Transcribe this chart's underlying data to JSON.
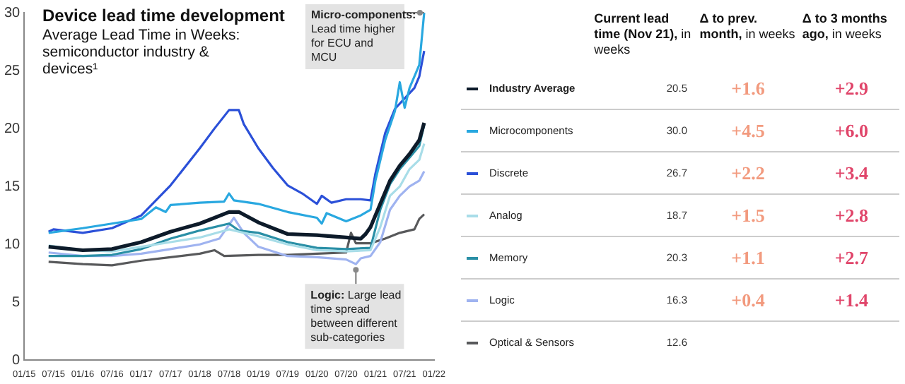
{
  "chart_data": [
    {
      "type": "line",
      "title": "Device lead time development",
      "subtitle": "Average Lead Time in Weeks: semiconductor industry & devices¹",
      "xlim": [
        "2015-01",
        "2022-01"
      ],
      "xticks": [
        {
          "value": "2015-01",
          "label": "01/15"
        },
        {
          "value": "2015-07",
          "label": "07/15"
        },
        {
          "value": "2016-01",
          "label": "01/16"
        },
        {
          "value": "2016-07",
          "label": "07/16"
        },
        {
          "value": "2017-01",
          "label": "01/17"
        },
        {
          "value": "2017-07",
          "label": "07/17"
        },
        {
          "value": "2018-01",
          "label": "01/18"
        },
        {
          "value": "2018-07",
          "label": "07/18"
        },
        {
          "value": "2019-01",
          "label": "01/19"
        },
        {
          "value": "2019-07",
          "label": "07/19"
        },
        {
          "value": "2020-01",
          "label": "01/20"
        },
        {
          "value": "2020-07",
          "label": "07/20"
        },
        {
          "value": "2021-01",
          "label": "01/21"
        },
        {
          "value": "2021-07",
          "label": "07/21"
        },
        {
          "value": "2022-01",
          "label": "01/22"
        }
      ],
      "ylim": [
        0,
        30
      ],
      "yticks": [
        0,
        5,
        10,
        15,
        20,
        25,
        30
      ],
      "grid": false,
      "marker": "none",
      "line_style": "solid",
      "annotations": [
        {
          "text": "Micro-components: Lead time higher for ECU and MCU",
          "x": "2021-11",
          "y": 30
        },
        {
          "text": "Logic: Large lead time spread between different sub-categories",
          "x": "2020-09",
          "y": 8.3
        }
      ],
      "series": [
        {
          "color": "#0d1b2a",
          "x": [
            "2015-06",
            "2016-01",
            "2016-07",
            "2017-01",
            "2017-07",
            "2018-01",
            "2018-07",
            "2018-09",
            "2019-01",
            "2019-07",
            "2020-01",
            "2020-07",
            "2020-10",
            "2020-11",
            "2020-12",
            "2021-02",
            "2021-04",
            "2021-06",
            "2021-08",
            "2021-10",
            "2021-11"
          ],
          "values": [
            9.8,
            9.5,
            9.6,
            10.2,
            11.1,
            11.8,
            12.8,
            12.8,
            11.9,
            10.9,
            10.8,
            10.6,
            10.5,
            10.9,
            11.5,
            13.5,
            15.5,
            16.8,
            17.8,
            19.0,
            20.5
          ]
        },
        {
          "color": "#29a8e0",
          "x": [
            "2015-06",
            "2016-01",
            "2016-07",
            "2017-01",
            "2017-04",
            "2017-06",
            "2017-07",
            "2018-01",
            "2018-06",
            "2018-07",
            "2018-08",
            "2019-01",
            "2019-07",
            "2020-01",
            "2020-02",
            "2020-03",
            "2020-07",
            "2020-10",
            "2020-12",
            "2021-01",
            "2021-03",
            "2021-05",
            "2021-06",
            "2021-07",
            "2021-08",
            "2021-10",
            "2021-11"
          ],
          "values": [
            11.0,
            11.4,
            11.8,
            12.2,
            13.2,
            12.8,
            13.4,
            13.6,
            13.7,
            14.4,
            13.8,
            13.5,
            12.8,
            12.3,
            11.8,
            12.7,
            12.0,
            12.5,
            13.0,
            15.5,
            19.0,
            21.5,
            24.0,
            21.8,
            23.5,
            25.5,
            30.0
          ]
        },
        {
          "color": "#2b50d8",
          "x": [
            "2015-06",
            "2015-07",
            "2016-01",
            "2016-07",
            "2017-01",
            "2017-07",
            "2018-01",
            "2018-04",
            "2018-07",
            "2018-09",
            "2018-10",
            "2019-01",
            "2019-04",
            "2019-07",
            "2019-10",
            "2020-01",
            "2020-02",
            "2020-04",
            "2020-07",
            "2020-10",
            "2020-12",
            "2021-01",
            "2021-03",
            "2021-05",
            "2021-07",
            "2021-09",
            "2021-10",
            "2021-11"
          ],
          "values": [
            11.1,
            11.3,
            11.0,
            11.4,
            12.5,
            15.1,
            18.3,
            20.0,
            21.6,
            21.6,
            20.4,
            18.3,
            16.6,
            15.1,
            14.4,
            13.5,
            14.2,
            13.6,
            13.9,
            13.9,
            13.8,
            16.1,
            19.6,
            21.7,
            22.6,
            23.5,
            24.5,
            26.7
          ]
        },
        {
          "color": "#a8dde8",
          "x": [
            "2015-06",
            "2016-01",
            "2016-07",
            "2017-01",
            "2017-07",
            "2018-01",
            "2018-07",
            "2019-01",
            "2019-07",
            "2020-01",
            "2020-07",
            "2020-12",
            "2021-02",
            "2021-04",
            "2021-06",
            "2021-08",
            "2021-10",
            "2021-11"
          ],
          "values": [
            9.9,
            9.5,
            9.4,
            9.8,
            10.2,
            10.6,
            11.3,
            10.7,
            10.0,
            9.5,
            9.4,
            9.5,
            11.5,
            14.2,
            15.0,
            16.5,
            17.3,
            18.7
          ]
        },
        {
          "color": "#2a8fa6",
          "x": [
            "2015-06",
            "2016-01",
            "2016-07",
            "2017-01",
            "2017-07",
            "2018-01",
            "2018-07",
            "2018-09",
            "2019-01",
            "2019-07",
            "2020-01",
            "2020-07",
            "2020-12",
            "2021-02",
            "2021-04",
            "2021-06",
            "2021-08",
            "2021-10",
            "2021-11"
          ],
          "values": [
            9.0,
            9.0,
            9.1,
            9.6,
            10.5,
            11.2,
            11.8,
            11.2,
            11.0,
            10.2,
            9.7,
            9.6,
            9.7,
            13.0,
            15.2,
            16.5,
            17.5,
            18.5,
            20.3
          ]
        },
        {
          "color": "#9fb3f0",
          "x": [
            "2015-06",
            "2016-01",
            "2016-07",
            "2017-01",
            "2017-07",
            "2018-01",
            "2018-05",
            "2018-08",
            "2018-10",
            "2019-01",
            "2019-07",
            "2020-01",
            "2020-07",
            "2020-09",
            "2020-10",
            "2020-12",
            "2021-02",
            "2021-04",
            "2021-06",
            "2021-08",
            "2021-10",
            "2021-11"
          ],
          "values": [
            9.3,
            9.0,
            9.0,
            9.2,
            9.6,
            10.0,
            10.5,
            12.3,
            11.0,
            9.8,
            9.0,
            8.9,
            8.7,
            8.3,
            8.8,
            9.0,
            10.2,
            13.0,
            14.2,
            15.0,
            15.5,
            16.3
          ]
        },
        {
          "color": "#58595b",
          "x": [
            "2015-06",
            "2016-01",
            "2016-07",
            "2017-01",
            "2017-07",
            "2018-01",
            "2018-04",
            "2018-06",
            "2019-01",
            "2019-07",
            "2020-01",
            "2020-07",
            "2020-08",
            "2020-09",
            "2020-12",
            "2021-03",
            "2021-06",
            "2021-09",
            "2021-10",
            "2021-11"
          ],
          "values": [
            8.5,
            8.3,
            8.2,
            8.6,
            8.9,
            9.2,
            9.5,
            9.0,
            9.1,
            9.1,
            9.2,
            9.3,
            11.0,
            10.1,
            10.1,
            10.5,
            11.0,
            11.3,
            12.2,
            12.6
          ]
        }
      ]
    },
    {
      "type": "other",
      "categories": [
        "Industry Average",
        "Microcomponents",
        "Discrete",
        "Analog",
        "Memory",
        "Logic",
        "Optical & Sensors"
      ],
      "series": [
        {
          "name": "Current lead time (Nov 21), in weeks",
          "values": [
            20.5,
            30.0,
            26.7,
            18.7,
            20.3,
            16.3,
            12.6
          ],
          "value_labels": [
            "20.5",
            "30.0",
            "26.7",
            "18.7",
            "20.3",
            "16.3",
            "12.6"
          ]
        },
        {
          "name": "Δ to prev. month, in weeks",
          "values": [
            1.6,
            4.5,
            2.2,
            1.5,
            1.1,
            0.4,
            null
          ],
          "value_labels": [
            "+1.6",
            "+4.5",
            "+2.2",
            "+1.5",
            "+1.1",
            "+0.4",
            null
          ]
        },
        {
          "name": "Δ to 3 months ago, in weeks",
          "values": [
            2.9,
            6.0,
            3.4,
            2.8,
            2.7,
            1.4,
            null
          ],
          "value_labels": [
            "+2.9",
            "+6.0",
            "+3.4",
            "+2.8",
            "+2.7",
            "+1.4",
            null
          ]
        }
      ]
    }
  ]
}
